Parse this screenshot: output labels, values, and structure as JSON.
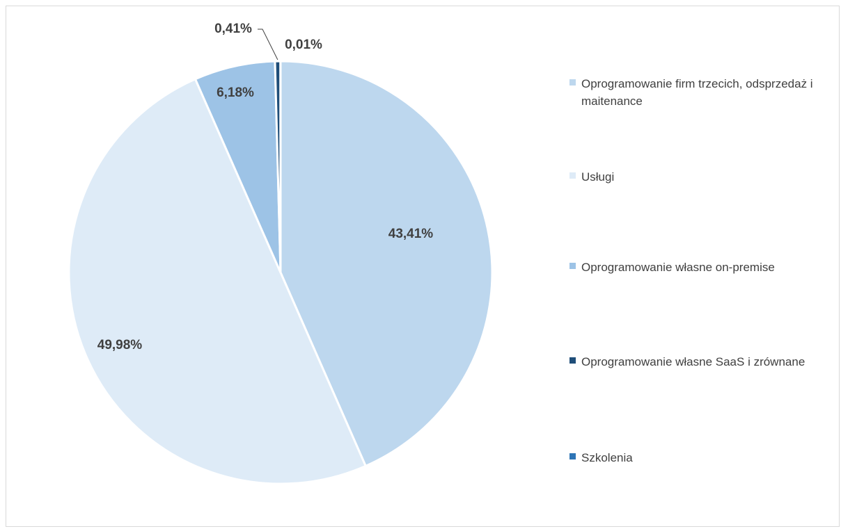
{
  "chart_data": {
    "type": "pie",
    "title": "",
    "legend_position": "right",
    "slices": [
      {
        "name": "Oprogramowanie firm trzecich, odsprzedaż i maitenance",
        "value": 43.41,
        "label": "43,41%",
        "color": "#bdd7ee"
      },
      {
        "name": "Usługi",
        "value": 49.98,
        "label": "49,98%",
        "color": "#deebf7"
      },
      {
        "name": "Oprogramowanie własne on-premise",
        "value": 6.18,
        "label": "6,18%",
        "color": "#9dc3e6"
      },
      {
        "name": "Oprogramowanie własne SaaS i zrównane",
        "value": 0.41,
        "label": "0,41%",
        "color": "#1f4e79"
      },
      {
        "name": "Szkolenia",
        "value": 0.01,
        "label": "0,01%",
        "color": "#2e75b6"
      }
    ]
  }
}
